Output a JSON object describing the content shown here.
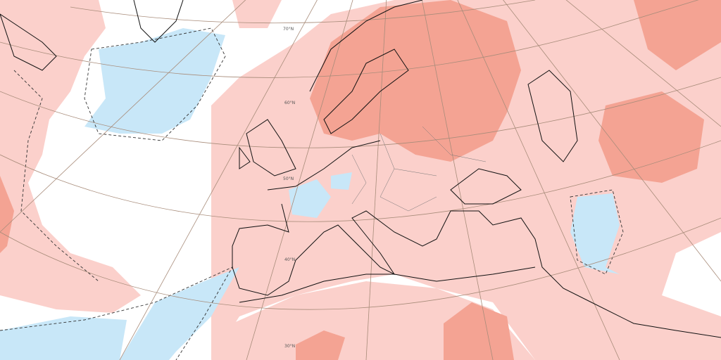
{
  "map": {
    "latitude_labels": [
      "70°N",
      "60°N",
      "50°N",
      "40°N",
      "30°N"
    ]
  }
}
